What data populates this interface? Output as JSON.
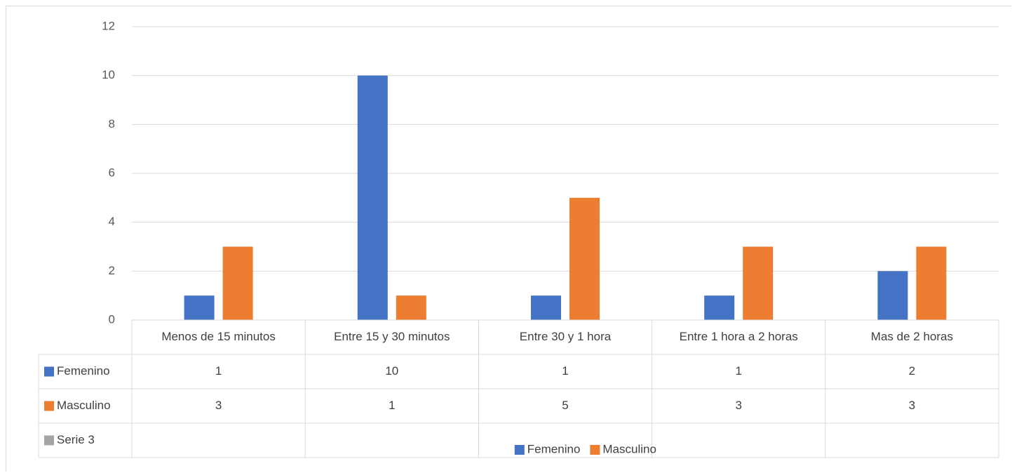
{
  "chart_data": {
    "type": "bar",
    "categories": [
      "Menos de 15 minutos",
      "Entre 15 y 30 minutos",
      "Entre 30 y 1 hora",
      "Entre 1 hora a 2 horas",
      "Mas de 2 horas"
    ],
    "series": [
      {
        "name": "Femenino",
        "values": [
          1,
          10,
          1,
          1,
          2
        ],
        "color": "#4472c4"
      },
      {
        "name": "Masculino",
        "values": [
          3,
          1,
          5,
          3,
          3
        ],
        "color": "#ed7d31"
      },
      {
        "name": "Serie 3",
        "values": [
          null,
          null,
          null,
          null,
          null
        ],
        "color": "#a5a5a5"
      }
    ],
    "ylim": [
      0,
      12
    ],
    "yticks": [
      0,
      2,
      4,
      6,
      8,
      10,
      12
    ],
    "grid": true,
    "data_table": true,
    "legend_position": "bottom",
    "legend": [
      "Femenino",
      "Masculino"
    ]
  }
}
